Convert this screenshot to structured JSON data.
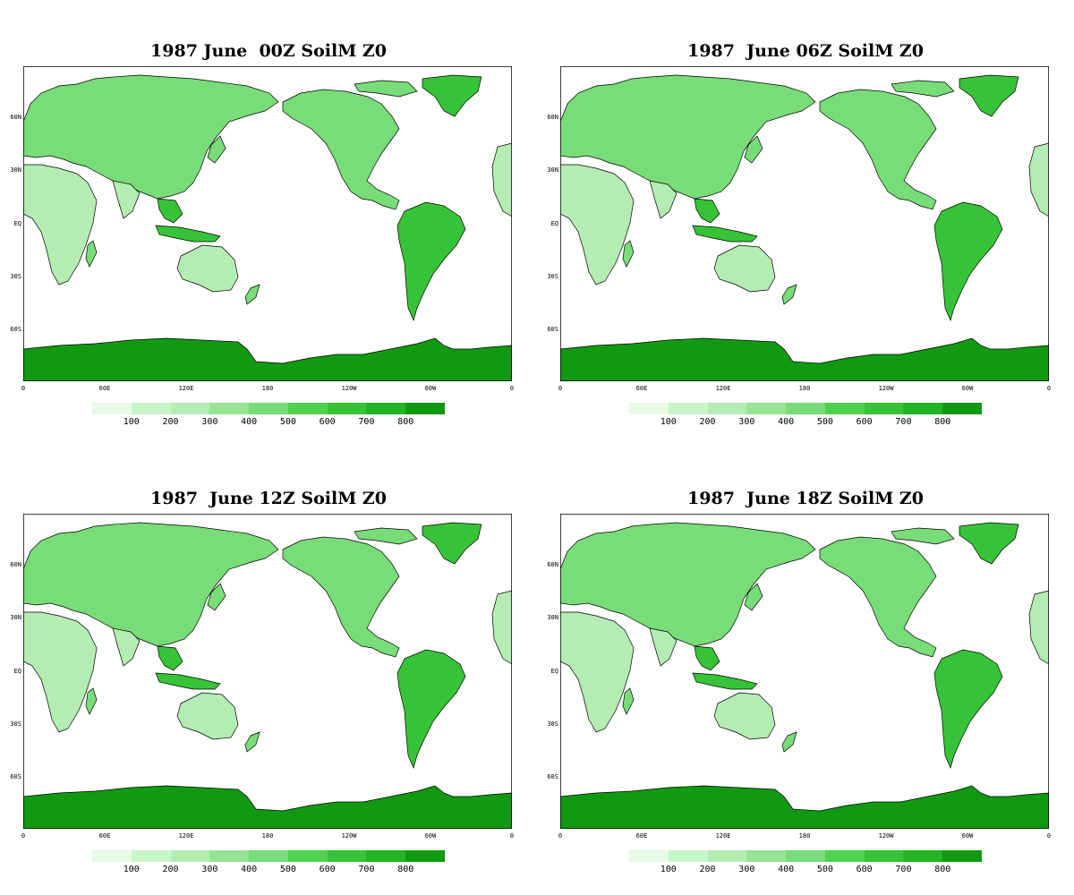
{
  "panels": [
    {
      "title": "1987 June  00Z SoilM Z0"
    },
    {
      "title": "1987  June 06Z SoilM Z0"
    },
    {
      "title": "1987  June 12Z SoilM Z0"
    },
    {
      "title": "1987  June 18Z SoilM Z0"
    }
  ],
  "axes": {
    "lat_labels": [
      "60N",
      "30N",
      "EQ",
      "30S",
      "60S"
    ],
    "lon_labels": [
      "0",
      "60E",
      "120E",
      "180",
      "120W",
      "60W",
      "0"
    ]
  },
  "colorbar": {
    "ticks": [
      "100",
      "200",
      "300",
      "400",
      "500",
      "600",
      "700",
      "800"
    ],
    "colors": [
      "#e6fae6",
      "#c8f5c8",
      "#b4ecb4",
      "#96e496",
      "#78dc78",
      "#50d250",
      "#37c337",
      "#23b423",
      "#129912"
    ]
  },
  "colors": {
    "land_light": "#b4ecb4",
    "land_mid": "#78dc78",
    "land_dark": "#37c337",
    "antarctica": "#129912",
    "coast": "#000000"
  }
}
